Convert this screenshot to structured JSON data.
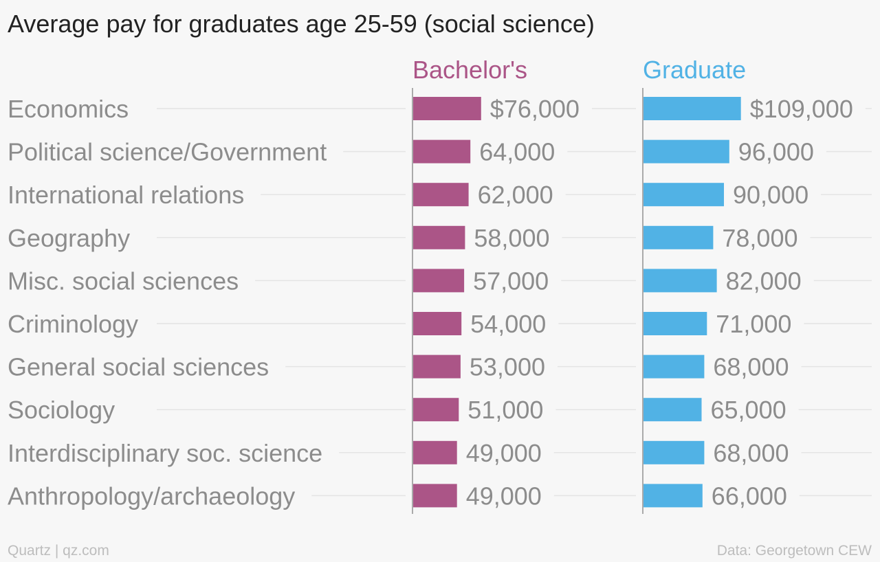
{
  "title": "Average pay for graduates age 25-59 (social science)",
  "footer": {
    "credit": "Quartz | qz.com",
    "source": "Data: Georgetown CEW"
  },
  "colors": {
    "bachelors": "#ab5587",
    "graduate": "#51b2e5",
    "category_text": "#8c8c8c",
    "value_text": "#8c8c8c",
    "rule": "#e4e4e4",
    "axis": "#aaaaaa"
  },
  "chart_data": {
    "type": "bar",
    "orientation": "horizontal",
    "title": "Average pay for graduates age 25-59 (social science)",
    "categories": [
      "Economics",
      "Political science/Government",
      "International relations",
      "Geography",
      "Misc. social sciences",
      "Criminology",
      "General social sciences",
      "Sociology",
      "Interdisciplinary soc. science",
      "Anthropology/archaeology"
    ],
    "series": [
      {
        "name": "Bachelor's",
        "values": [
          76000,
          64000,
          62000,
          58000,
          57000,
          54000,
          53000,
          51000,
          49000,
          49000
        ],
        "labels": [
          "$76,000",
          "64,000",
          "62,000",
          "58,000",
          "57,000",
          "54,000",
          "53,000",
          "51,000",
          "49,000",
          "49,000"
        ]
      },
      {
        "name": "Graduate",
        "values": [
          109000,
          96000,
          90000,
          78000,
          82000,
          71000,
          68000,
          65000,
          68000,
          66000
        ],
        "labels": [
          "$109,000",
          "96,000",
          "90,000",
          "78,000",
          "82,000",
          "71,000",
          "68,000",
          "65,000",
          "68,000",
          "66,000"
        ]
      }
    ],
    "xlim": [
      0,
      200000
    ],
    "grid": false,
    "legend": "column headers"
  }
}
